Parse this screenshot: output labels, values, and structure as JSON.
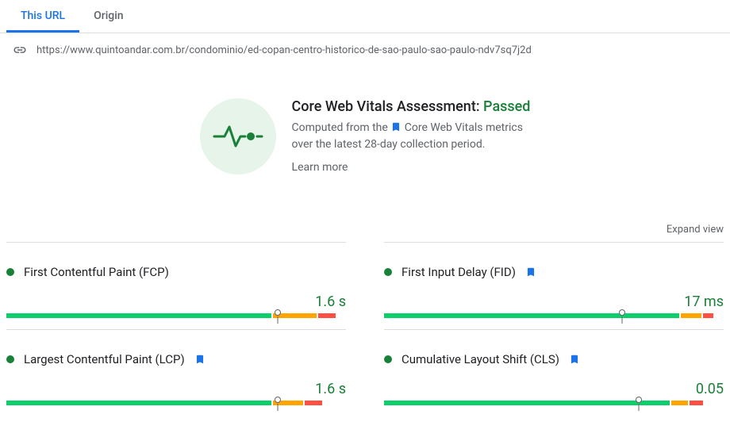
{
  "tabs": {
    "this_url": "This URL",
    "origin": "Origin"
  },
  "url": "https://www.quintoandar.com.br/condominio/ed-copan-centro-historico-de-sao-paulo-sao-paulo-ndv7sq7j2d",
  "assessment": {
    "title_prefix": "Core Web Vitals Assessment: ",
    "status": "Passed",
    "desc1": "Computed from the ",
    "desc2": " Core Web Vitals metrics",
    "desc3": "over the latest 28-day collection period.",
    "learn_more": "Learn more"
  },
  "expand": "Expand view",
  "colors": {
    "good": "#0cce6b",
    "warn": "#ffa400",
    "bad": "#ff4e42",
    "status_dot": "#188038",
    "value": "#188038",
    "bookmark": "#1a73e8"
  },
  "metrics": [
    {
      "name": "First Contentful Paint (FCP)",
      "bookmark": false,
      "value": "1.6 s",
      "segments": [
        78,
        13,
        5
      ],
      "marker": 80
    },
    {
      "name": "First Input Delay (FID)",
      "bookmark": true,
      "value": "17 ms",
      "segments": [
        87,
        6,
        3
      ],
      "marker": 70
    },
    {
      "name": "Largest Contentful Paint (LCP)",
      "bookmark": true,
      "value": "1.6 s",
      "segments": [
        78,
        9,
        5
      ],
      "marker": 80
    },
    {
      "name": "Cumulative Layout Shift (CLS)",
      "bookmark": true,
      "value": "0.05",
      "segments": [
        84,
        5,
        4
      ],
      "marker": 75
    }
  ]
}
